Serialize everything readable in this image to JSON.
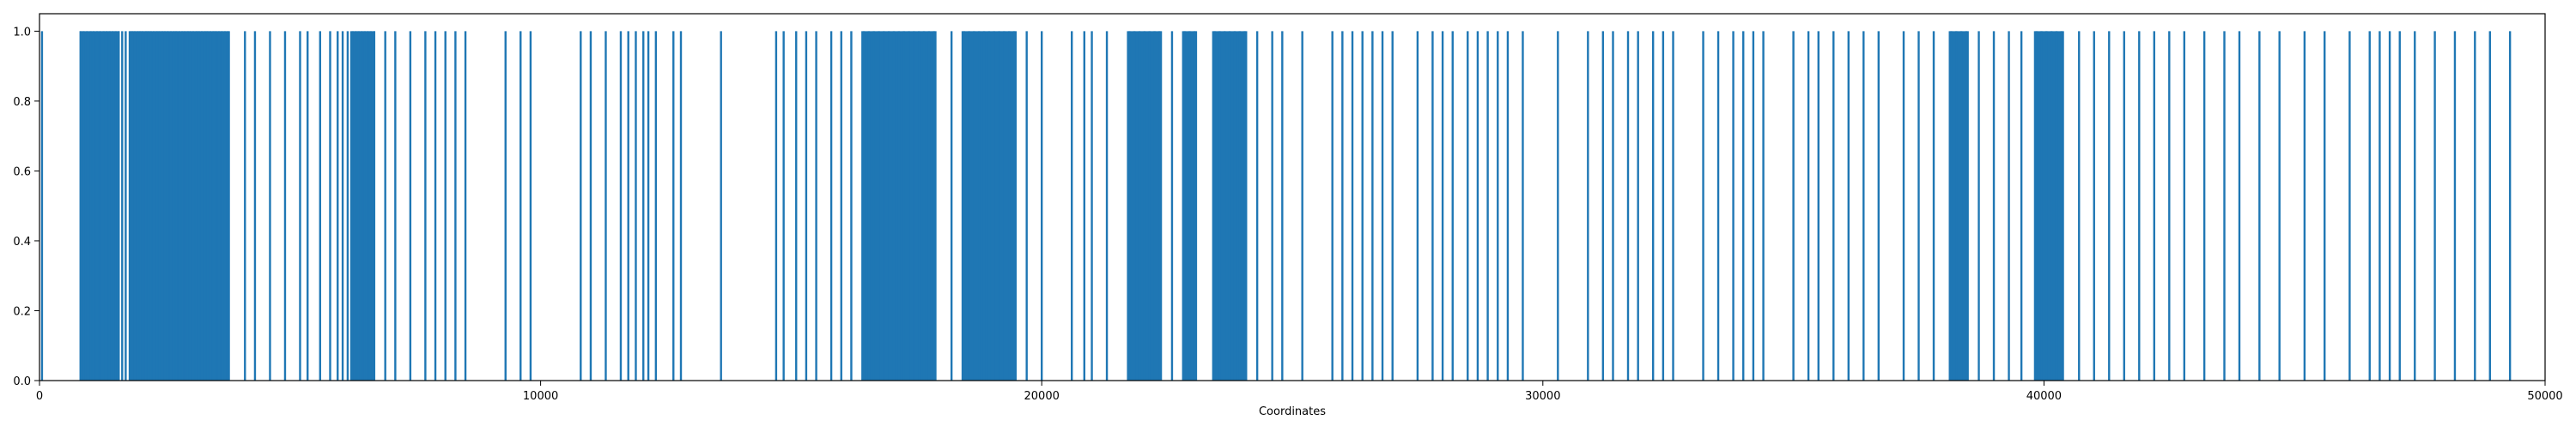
{
  "chart_data": {
    "type": "bar",
    "title": "",
    "xlabel": "Coordinates",
    "ylabel": "",
    "xlim": [
      0,
      50000
    ],
    "ylim": [
      0,
      1.05
    ],
    "xticks": [
      0,
      10000,
      20000,
      30000,
      40000,
      50000
    ],
    "xtick_labels": [
      "0",
      "10000",
      "20000",
      "30000",
      "40000",
      "50000"
    ],
    "yticks": [
      0.0,
      0.2,
      0.4,
      0.6,
      0.8,
      1.0
    ],
    "ytick_labels": [
      "0.0",
      "0.2",
      "0.4",
      "0.6",
      "0.8",
      "1.0"
    ],
    "grid": false,
    "legend": false,
    "color": "#1f77b4",
    "bar_value": 1.0,
    "dense_regions": [
      [
        800,
        1600
      ],
      [
        1800,
        3800
      ],
      [
        6200,
        6700
      ],
      [
        16400,
        17900
      ],
      [
        18400,
        19500
      ],
      [
        21700,
        22400
      ],
      [
        22800,
        23100
      ],
      [
        23400,
        24100
      ],
      [
        38100,
        38500
      ],
      [
        39800,
        40400
      ]
    ],
    "x": [
      50,
      820,
      880,
      950,
      1020,
      1080,
      1150,
      1210,
      1280,
      1340,
      1400,
      1460,
      1520,
      1580,
      1650,
      1720,
      1800,
      1850,
      1900,
      1960,
      2010,
      2060,
      2120,
      2170,
      2220,
      2280,
      2340,
      2390,
      2450,
      2500,
      2560,
      2620,
      2680,
      2730,
      2790,
      2850,
      2900,
      2960,
      3010,
      3070,
      3130,
      3180,
      3240,
      3300,
      3350,
      3410,
      3470,
      3520,
      3580,
      3640,
      3700,
      3760,
      4100,
      4300,
      4600,
      4900,
      5200,
      5350,
      5600,
      5800,
      5950,
      6050,
      6150,
      6250,
      6310,
      6370,
      6430,
      6490,
      6550,
      6610,
      6680,
      6900,
      7100,
      7400,
      7700,
      7900,
      8100,
      8300,
      8500,
      9300,
      9600,
      9800,
      10800,
      11000,
      11300,
      11600,
      11750,
      11900,
      12050,
      12150,
      12300,
      12650,
      12800,
      13600,
      14700,
      14850,
      15100,
      15300,
      15500,
      15800,
      16000,
      16200,
      16450,
      16550,
      16650,
      16750,
      16850,
      16950,
      17050,
      17150,
      17250,
      17350,
      17450,
      17550,
      17650,
      17750,
      17850,
      18200,
      18450,
      18550,
      18650,
      18750,
      18850,
      18950,
      19050,
      19150,
      19250,
      19350,
      19450,
      19700,
      20000,
      20600,
      20850,
      21000,
      21300,
      21750,
      21850,
      21950,
      22050,
      22150,
      22250,
      22350,
      22600,
      22850,
      22950,
      23050,
      23450,
      23550,
      23650,
      23750,
      23850,
      23950,
      24050,
      24300,
      24600,
      24800,
      25200,
      25800,
      26000,
      26200,
      26400,
      26600,
      26800,
      27000,
      27500,
      27800,
      28000,
      28200,
      28500,
      28700,
      28900,
      29100,
      29300,
      29600,
      30300,
      30900,
      31200,
      31400,
      31700,
      31900,
      32200,
      32400,
      32600,
      33200,
      33500,
      33800,
      34000,
      34200,
      34400,
      35000,
      35300,
      35500,
      35800,
      36100,
      36400,
      36700,
      37200,
      37500,
      37800,
      38150,
      38250,
      38350,
      38450,
      38700,
      39000,
      39300,
      39550,
      39850,
      39950,
      40050,
      40150,
      40250,
      40350,
      40700,
      41000,
      41300,
      41600,
      41900,
      42200,
      42500,
      42800,
      43200,
      43600,
      43900,
      44300,
      44700,
      45200,
      45600,
      46100,
      46500,
      46700,
      46900,
      47100,
      47400,
      47800,
      48200,
      48600,
      48900,
      49300
    ]
  }
}
